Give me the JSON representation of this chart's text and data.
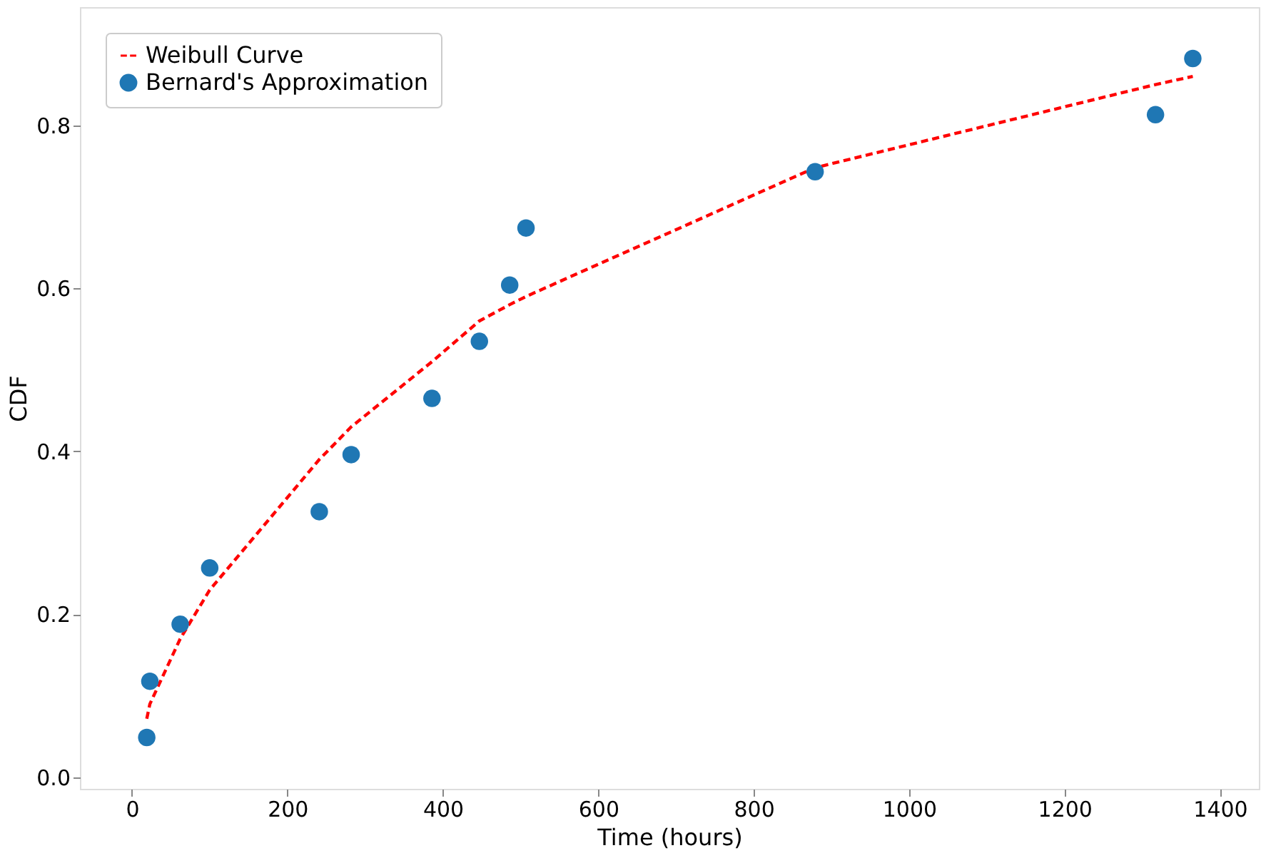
{
  "chart_data": {
    "type": "scatter",
    "xlabel": "Time (hours)",
    "ylabel": "CDF",
    "xlim": [
      -67,
      1450
    ],
    "ylim": [
      -0.014,
      0.945
    ],
    "xticks": [
      0,
      200,
      400,
      600,
      800,
      1000,
      1200,
      1400
    ],
    "yticks": [
      {
        "value": 0,
        "label": "0.0"
      },
      0.2,
      0.4,
      0.6,
      0.8
    ],
    "legend": "top left",
    "grid": false,
    "series": [
      {
        "name": "Weibull Curve",
        "type": "line",
        "line_style": "dashed",
        "color": "#ff0000",
        "x": [
          19,
          23,
          62,
          100,
          241,
          282,
          386,
          447,
          486,
          507,
          879,
          1317,
          1365
        ],
        "values": [
          0.072,
          0.09,
          0.17,
          0.23,
          0.39,
          0.43,
          0.51,
          0.56,
          0.58,
          0.59,
          0.748,
          0.85,
          0.86
        ]
      },
      {
        "name": "Bernard's Approximation",
        "type": "scatter",
        "marker": "circle",
        "color": "#1f77b4",
        "x": [
          19,
          23,
          62,
          100,
          241,
          282,
          386,
          447,
          486,
          507,
          879,
          1317,
          1365
        ],
        "values": [
          0.049,
          0.118,
          0.188,
          0.257,
          0.326,
          0.396,
          0.465,
          0.535,
          0.604,
          0.674,
          0.743,
          0.813,
          0.882
        ]
      }
    ]
  }
}
